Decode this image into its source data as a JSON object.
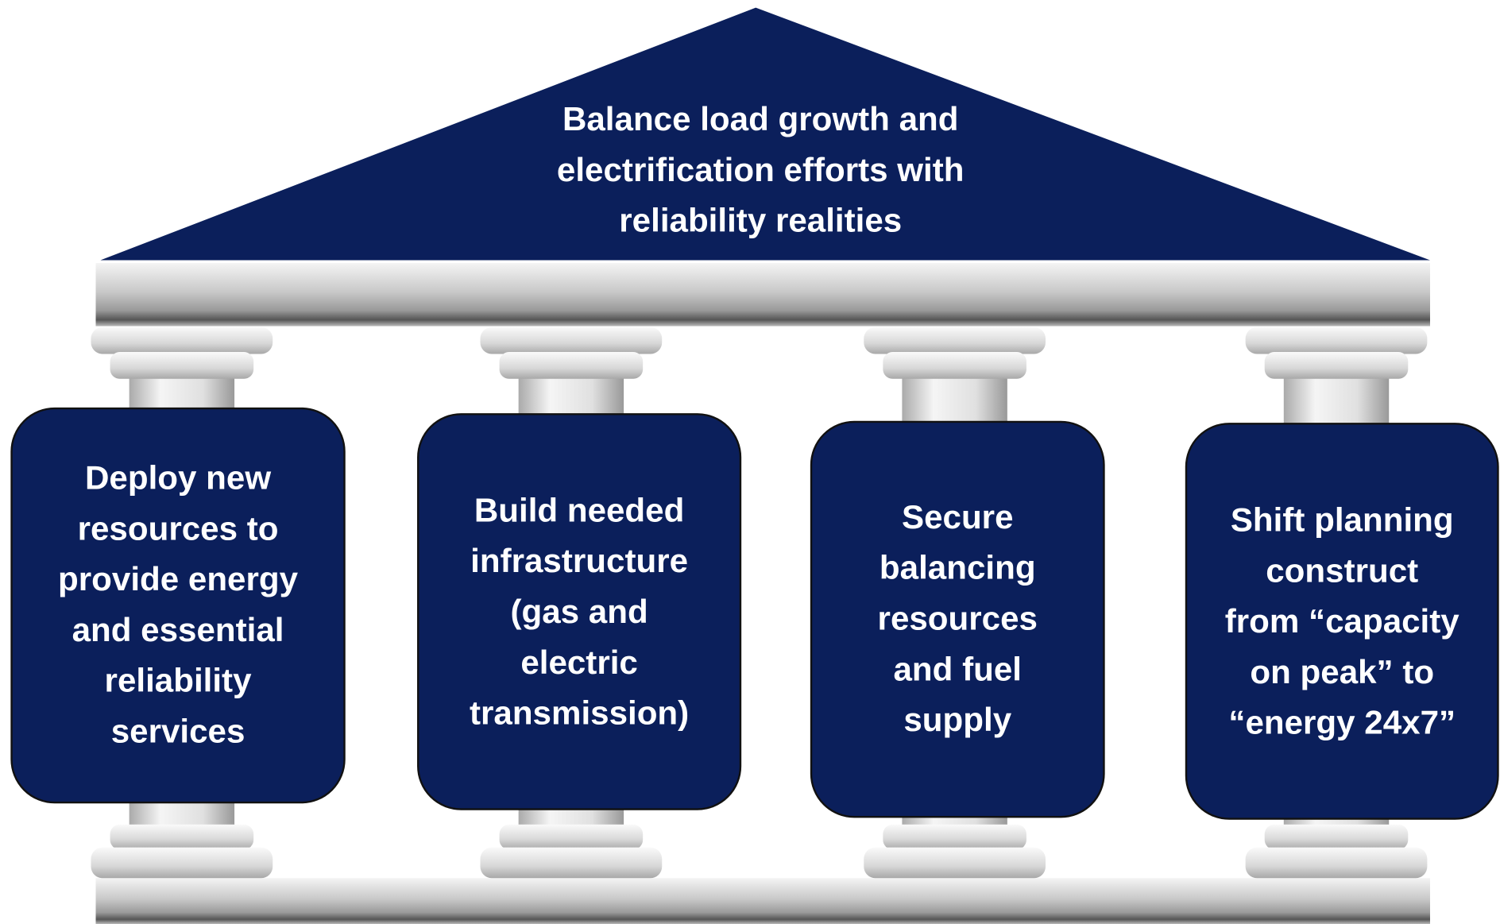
{
  "roof": {
    "lines": [
      "Balance load growth and",
      "electrification efforts with",
      "reliability realities"
    ]
  },
  "pillars": [
    {
      "lines": [
        "Deploy new",
        "resources to",
        "provide energy",
        "and essential",
        "reliability",
        "services"
      ]
    },
    {
      "lines": [
        "Build needed",
        "infrastructure",
        "(gas and",
        "electric",
        "transmission)"
      ]
    },
    {
      "lines": [
        "Secure",
        "balancing",
        "resources",
        "and fuel",
        "supply"
      ]
    },
    {
      "lines": [
        "Shift planning",
        "construct",
        "from “capacity",
        "on peak” to",
        "“energy 24x7”"
      ]
    }
  ]
}
